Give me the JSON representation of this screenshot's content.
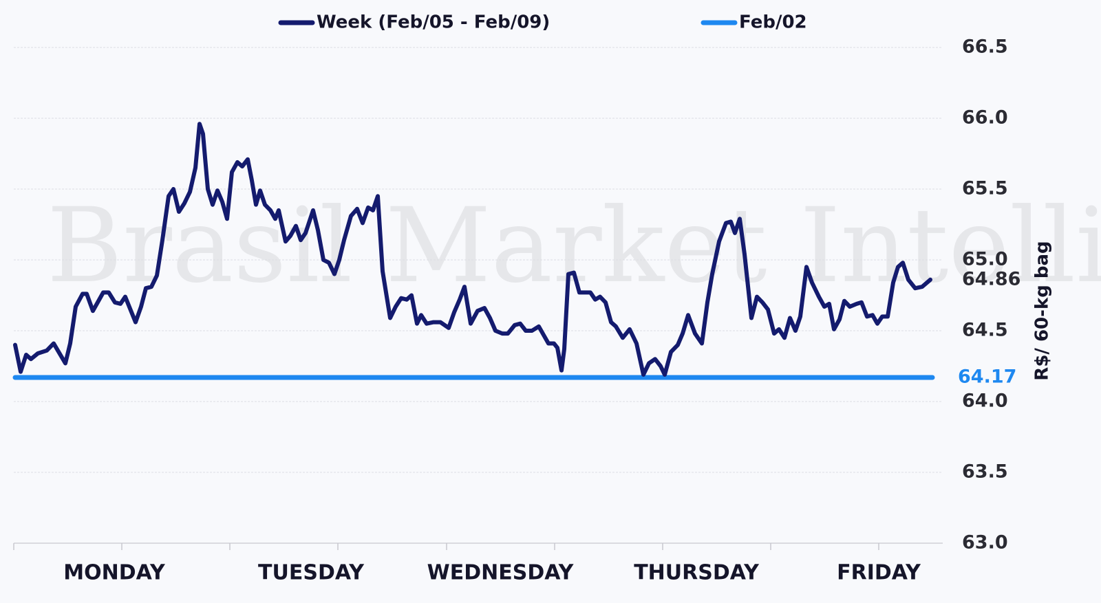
{
  "chart_data": {
    "type": "line",
    "watermark": "StoneX® Brasil Market Intelligence",
    "y_label": "R$/ 60-kg bag",
    "xlim": [
      0,
      1350
    ],
    "ylim": [
      63.0,
      66.5
    ],
    "yticks": [
      {
        "value": 63.0,
        "label": "63.0"
      },
      63.5,
      {
        "value": 64.0,
        "label": "64.0"
      },
      64.5,
      {
        "value": 65.0,
        "label": "65.0"
      },
      65.5,
      {
        "value": 66.0,
        "label": "66.0"
      },
      66.5
    ],
    "xticks": [
      {
        "value": 146,
        "label": "MONDAY"
      },
      {
        "value": 432,
        "label": "TUESDAY"
      },
      {
        "value": 707,
        "label": "WEDNESDAY"
      },
      {
        "value": 992,
        "label": "THURSDAY"
      },
      {
        "value": 1257,
        "label": "FRIDAY"
      }
    ],
    "minor_xticks": [
      0,
      157,
      314,
      471,
      629,
      786,
      943,
      1100,
      1257
    ],
    "grid": true,
    "series": [
      {
        "name": "Week (Feb/05 - Feb/09)",
        "color": "#141b6e",
        "x": [
          2,
          10,
          18,
          25,
          35,
          48,
          58,
          75,
          82,
          90,
          100,
          106,
          115,
          130,
          138,
          147,
          155,
          162,
          177,
          185,
          192,
          200,
          208,
          216,
          225,
          232,
          240,
          248,
          256,
          264,
          270,
          275,
          282,
          289,
          296,
          303,
          310,
          317,
          325,
          332,
          340,
          346,
          352,
          358,
          365,
          373,
          380,
          385,
          395,
          402,
          410,
          417,
          424,
          435,
          442,
          450,
          458,
          466,
          473,
          480,
          490,
          499,
          507,
          515,
          522,
          529,
          536,
          547,
          555,
          563,
          571,
          578,
          586,
          592,
          600,
          610,
          620,
          632,
          640,
          648,
          655,
          664,
          674,
          684,
          692,
          700,
          710,
          718,
          728,
          736,
          744,
          753,
          763,
          770,
          777,
          785,
          790,
          796,
          800,
          806,
          814,
          822,
          830,
          838,
          845,
          852,
          860,
          868,
          875,
          885,
          895,
          905,
          915,
          923,
          932,
          940,
          946,
          955,
          965,
          972,
          980,
          990,
          1000,
          1008,
          1015,
          1025,
          1035,
          1042,
          1048,
          1055,
          1062,
          1072,
          1080,
          1088,
          1096,
          1105,
          1112,
          1120,
          1128,
          1136,
          1143,
          1152,
          1160,
          1170,
          1178,
          1185,
          1192,
          1200,
          1207,
          1215,
          1225,
          1232,
          1240,
          1248,
          1255,
          1262,
          1270,
          1278,
          1285,
          1292,
          1300,
          1310,
          1320,
          1332
        ],
        "values": [
          64.4,
          64.21,
          64.33,
          64.3,
          64.34,
          64.36,
          64.41,
          64.27,
          64.41,
          64.67,
          64.76,
          64.76,
          64.64,
          64.77,
          64.77,
          64.7,
          64.69,
          64.74,
          64.56,
          64.67,
          64.8,
          64.81,
          64.89,
          65.14,
          65.45,
          65.5,
          65.34,
          65.4,
          65.48,
          65.65,
          65.96,
          65.89,
          65.5,
          65.39,
          65.49,
          65.41,
          65.29,
          65.62,
          65.69,
          65.66,
          65.71,
          65.56,
          65.39,
          65.49,
          65.39,
          65.35,
          65.29,
          65.35,
          65.13,
          65.17,
          65.24,
          65.14,
          65.19,
          65.35,
          65.21,
          65.0,
          64.98,
          64.9,
          65.0,
          65.14,
          65.31,
          65.36,
          65.26,
          65.37,
          65.35,
          65.45,
          64.92,
          64.59,
          64.67,
          64.73,
          64.72,
          64.75,
          64.55,
          64.61,
          64.55,
          64.56,
          64.56,
          64.52,
          64.63,
          64.72,
          64.81,
          64.55,
          64.64,
          64.66,
          64.59,
          64.5,
          64.48,
          64.48,
          64.54,
          64.55,
          64.5,
          64.5,
          64.53,
          64.47,
          64.41,
          64.41,
          64.38,
          64.22,
          64.37,
          64.9,
          64.91,
          64.77,
          64.77,
          64.77,
          64.72,
          64.74,
          64.7,
          64.56,
          64.53,
          64.45,
          64.51,
          64.41,
          64.19,
          64.27,
          64.3,
          64.25,
          64.19,
          64.35,
          64.4,
          64.48,
          64.61,
          64.48,
          64.41,
          64.7,
          64.9,
          65.13,
          65.26,
          65.27,
          65.19,
          65.29,
          65.04,
          64.59,
          64.74,
          64.7,
          64.65,
          64.48,
          64.51,
          64.45,
          64.59,
          64.5,
          64.6,
          64.95,
          64.84,
          64.74,
          64.67,
          64.69,
          64.51,
          64.58,
          64.71,
          64.67,
          64.69,
          64.7,
          64.6,
          64.61,
          64.55,
          64.6,
          64.6,
          64.84,
          64.95,
          64.98,
          64.86,
          64.8,
          64.81,
          64.86
        ]
      },
      {
        "name": "Feb/02",
        "color": "#1e88f0",
        "x": [
          2,
          1335
        ],
        "values": [
          64.17,
          64.17
        ]
      }
    ]
  }
}
